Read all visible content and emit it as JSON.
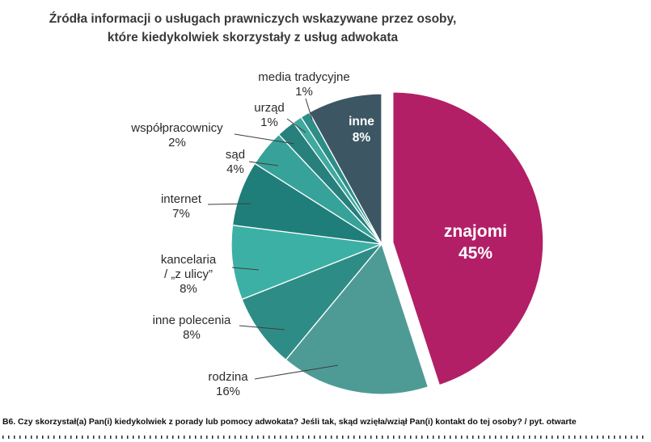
{
  "title": {
    "line1": "Źródła informacji o usługach prawniczych wskazywane przez osoby,",
    "line2": "które kiedykolwiek skorzystały z usług adwokata"
  },
  "footnote": "B6. Czy skorzystał(a) Pan(i) kiedykolwiek z porady lub pomocy adwokata? Jeśli tak, skąd wzięła/wziął Pan(i) kontakt do tej osoby? / pyt. otwarte",
  "chart_data": {
    "type": "pie",
    "title": "Źródła informacji o usługach prawniczych wskazywane przez osoby, które kiedykolwiek skorzystały z usług adwokata",
    "unit": "%",
    "legend": "none",
    "categories": [
      "znajomi",
      "rodzina",
      "inne polecenia",
      "kancelaria / „z ulicy”",
      "internet",
      "sąd",
      "współpracownicy",
      "urząd",
      "media tradycyjne",
      "inne"
    ],
    "values": [
      45,
      16,
      8,
      8,
      7,
      4,
      2,
      1,
      1,
      8
    ],
    "colors": {
      "highlight_magenta": "#b21f66",
      "dark_slate": "#3d5663",
      "inside_label_text": "#ffffff",
      "outside_label_text": "#2b2b2b"
    },
    "slices": [
      {
        "name": "znajomi",
        "value": 45,
        "pct": "45%",
        "color": "#b21f66",
        "label_lines": [
          "znajomi"
        ],
        "label_inside": true
      },
      {
        "name": "rodzina",
        "value": 16,
        "pct": "16%",
        "color": "#4e9b96",
        "label_lines": [
          "rodzina"
        ],
        "label_inside": false
      },
      {
        "name": "inne polecenia",
        "value": 8,
        "pct": "8%",
        "color": "#2e8c86",
        "label_lines": [
          "inne polecenia"
        ],
        "label_inside": false
      },
      {
        "name": "kancelaria / „z ulicy”",
        "value": 8,
        "pct": "8%",
        "color": "#3db0a6",
        "label_lines": [
          "kancelaria",
          "/ „z ulicy”"
        ],
        "label_inside": false
      },
      {
        "name": "internet",
        "value": 7,
        "pct": "7%",
        "color": "#1f7e79",
        "label_lines": [
          "internet"
        ],
        "label_inside": false
      },
      {
        "name": "sąd",
        "value": 4,
        "pct": "4%",
        "color": "#37a29a",
        "label_lines": [
          "sąd"
        ],
        "label_inside": false
      },
      {
        "name": "współpracownicy",
        "value": 2,
        "pct": "2%",
        "color": "#27807b",
        "label_lines": [
          "współpracownicy"
        ],
        "label_inside": false
      },
      {
        "name": "urząd",
        "value": 1,
        "pct": "1%",
        "color": "#3fa89f",
        "label_lines": [
          "urząd"
        ],
        "label_inside": false
      },
      {
        "name": "media tradycyjne",
        "value": 1,
        "pct": "1%",
        "color": "#2d8e88",
        "label_lines": [
          "media tradycyjne"
        ],
        "label_inside": false
      },
      {
        "name": "inne",
        "value": 8,
        "pct": "8%",
        "color": "#3d5663",
        "label_lines": [
          "inne"
        ],
        "label_inside": true
      }
    ]
  }
}
